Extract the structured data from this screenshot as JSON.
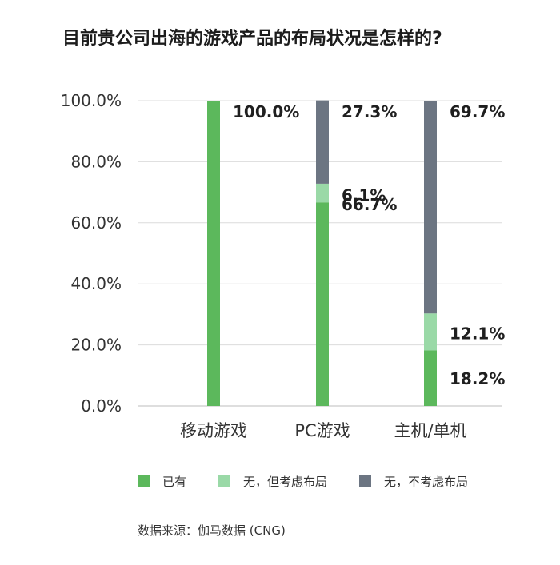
{
  "chart_data": {
    "type": "bar",
    "stacked": true,
    "title": "目前贵公司出海的游戏产品的布局状况是怎样的?",
    "categories": [
      "移动游戏",
      "PC游戏",
      "主机/单机"
    ],
    "series": [
      {
        "name": "已有",
        "values": [
          100.0,
          66.7,
          18.2
        ],
        "labels": [
          "100.0%",
          "66.7%",
          "18.2%"
        ],
        "color": "#5cb85c"
      },
      {
        "name": "无，但考虑布局",
        "values": [
          0,
          6.1,
          12.1
        ],
        "labels": [
          "",
          "6.1%",
          "12.1%"
        ],
        "color": "#9ad9a7"
      },
      {
        "name": "无，不考虑布局",
        "values": [
          0,
          27.3,
          69.7
        ],
        "labels": [
          "",
          "27.3%",
          "69.7%"
        ],
        "color": "#6c7582"
      }
    ],
    "yticks": [
      "0.0%",
      "20.0%",
      "40.0%",
      "60.0%",
      "80.0%",
      "100.0%"
    ],
    "ylim": [
      0,
      100
    ],
    "grid": true,
    "legend_position": "bottom"
  },
  "source": "数据来源：伽马数据 (CNG)"
}
